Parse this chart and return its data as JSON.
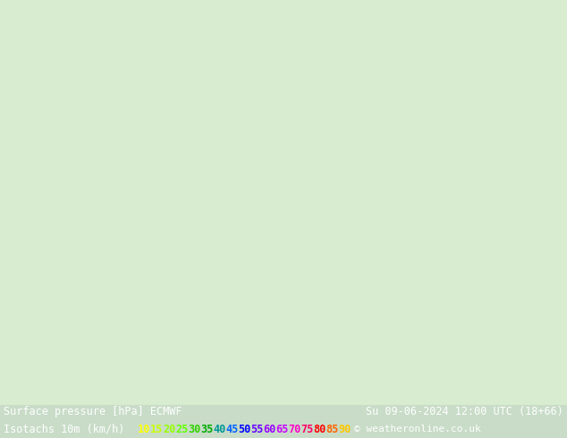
{
  "line1_left": "Surface pressure [hPa] ECMWF",
  "line1_right": "Su 09-06-2024 12:00 UTC (18+66)",
  "line2_left": "Isotachs 10m (km/h)",
  "copyright": "© weatheronline.co.uk",
  "isotach_values": [
    10,
    15,
    20,
    25,
    30,
    35,
    40,
    45,
    50,
    55,
    60,
    65,
    70,
    75,
    80,
    85,
    90
  ],
  "isotach_colors": [
    "#ffff00",
    "#c8ff00",
    "#96ff00",
    "#64ff00",
    "#32d200",
    "#00aa00",
    "#009696",
    "#0064ff",
    "#0000ff",
    "#6400ff",
    "#9600ff",
    "#c800ff",
    "#ff00c8",
    "#ff0064",
    "#ff0000",
    "#ff6400",
    "#ffc800"
  ],
  "bg_color": "#000000",
  "text_color": "#ffffff",
  "map_bg_color": "#c8e6c8",
  "fig_width": 6.34,
  "fig_height": 4.9,
  "dpi": 100
}
